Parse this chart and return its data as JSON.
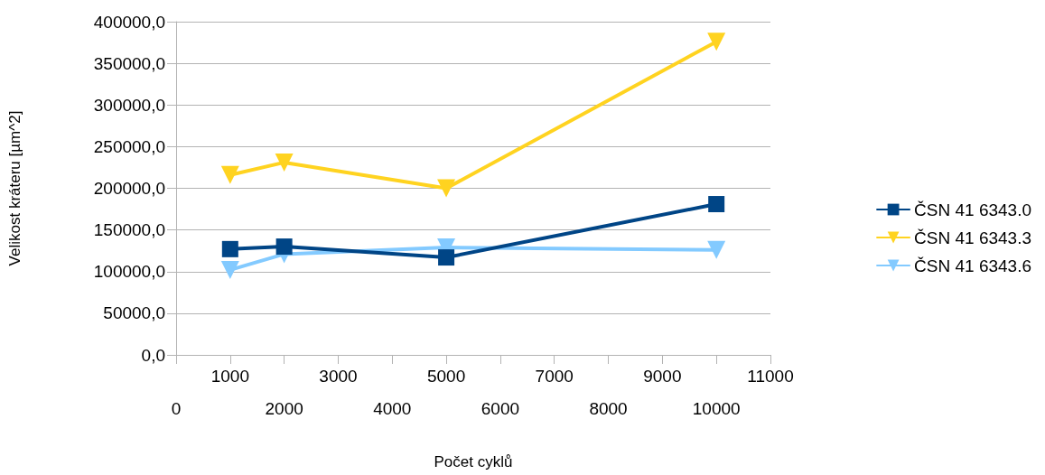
{
  "chart_data": {
    "type": "line",
    "xlabel": "Počet cyklů",
    "ylabel": "Velikost kráteru [µm^2]",
    "x": [
      1000,
      2000,
      5000,
      10000
    ],
    "series": [
      {
        "name": "ČSN 41 6343.0",
        "color": "#004586",
        "marker": "square",
        "values": [
          127000,
          130000,
          117000,
          181000
        ]
      },
      {
        "name": "ČSN 41 6343.3",
        "color": "#ffd320",
        "marker": "triangle",
        "values": [
          216000,
          231000,
          200000,
          376000
        ]
      },
      {
        "name": "ČSN 41 6343.6",
        "color": "#83caff",
        "marker": "triangle",
        "values": [
          102000,
          121000,
          129000,
          126000
        ]
      }
    ],
    "xlim": [
      0,
      11000
    ],
    "xticks": [
      0,
      {
        "value": 1000,
        "label": null
      },
      2000,
      {
        "value": 3000,
        "label": null
      },
      4000,
      {
        "value": 5000,
        "label": null
      },
      6000,
      {
        "value": 7000,
        "label": null
      },
      8000,
      {
        "value": 9000,
        "label": null
      },
      10000,
      {
        "value": 11000,
        "label": null
      }
    ],
    "x2lim": [
      0,
      11000
    ],
    "x2ticks": [
      1000,
      3000,
      5000,
      7000,
      9000,
      11000
    ],
    "ylim": [
      0,
      400000
    ],
    "yticks": [
      {
        "value": 0,
        "label": "0,0"
      },
      {
        "value": 50000,
        "label": "50000,0"
      },
      {
        "value": 100000,
        "label": "100000,0"
      },
      {
        "value": 150000,
        "label": "150000,0"
      },
      {
        "value": 200000,
        "label": "200000,0"
      },
      {
        "value": 250000,
        "label": "250000,0"
      },
      {
        "value": 300000,
        "label": "300000,0"
      },
      {
        "value": 350000,
        "label": "350000,0"
      },
      {
        "value": 400000,
        "label": "400000,0"
      }
    ],
    "grid": "y",
    "legend": "right",
    "line_style": "solid"
  }
}
